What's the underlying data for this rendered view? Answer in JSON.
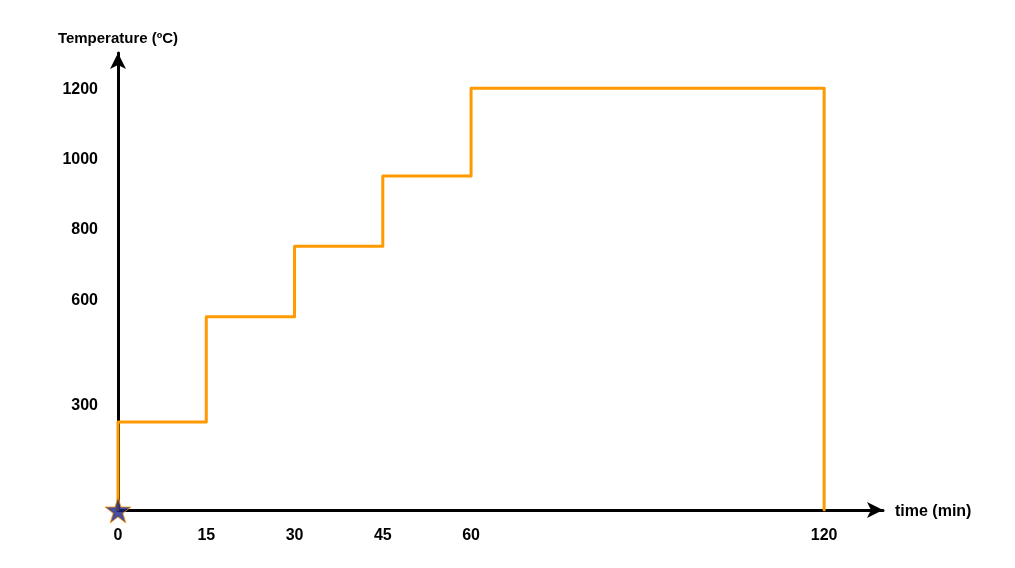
{
  "chart_data": {
    "type": "line",
    "xlabel": "time (min)",
    "ylabel": "Temperature (ºC)",
    "xlim": [
      0,
      130
    ],
    "xticks": [
      0,
      15,
      30,
      45,
      60,
      120
    ],
    "ylim": [
      0,
      1300
    ],
    "yticks": [
      300,
      600,
      800,
      1000,
      1200
    ],
    "grid": false,
    "line_style": "solid",
    "series": [
      {
        "color": "#ff9900",
        "marker": "none",
        "x": [
          0,
          0,
          15,
          15,
          30,
          30,
          45,
          45,
          60,
          60,
          120,
          120
        ],
        "values": [
          0,
          250,
          250,
          550,
          550,
          750,
          750,
          950,
          950,
          1200,
          1200,
          0
        ]
      },
      {
        "type": "scatter",
        "color": "#1a237e",
        "marker": "star",
        "x": [
          0
        ],
        "values": [
          0
        ]
      }
    ]
  }
}
